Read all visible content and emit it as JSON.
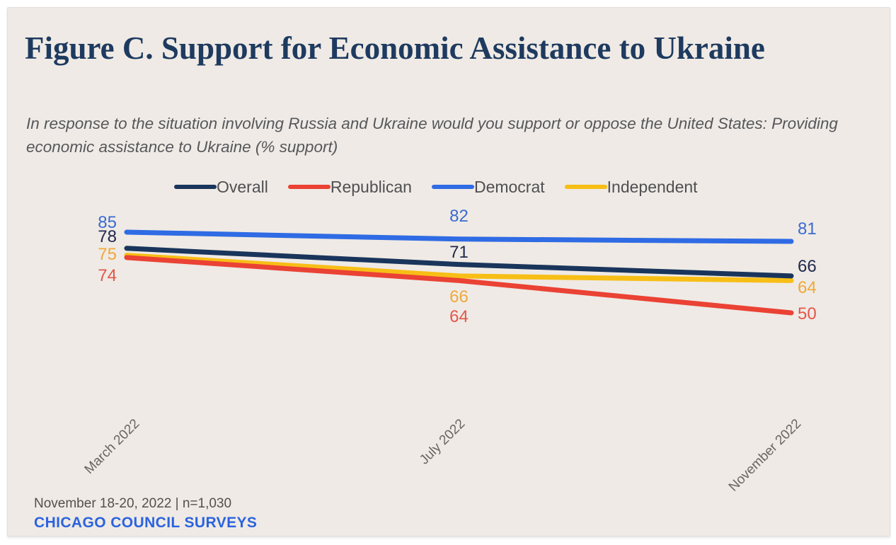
{
  "card": {
    "title": "Figure C. Support for Economic Assistance to Ukraine",
    "subtitle": "In response to the situation involving Russia and Ukraine would you support or oppose the United States: Providing economic assistance to Ukraine (% support)",
    "footer_note": "November 18-20, 2022 | n=1,030",
    "footer_brand": "CHICAGO COUNCIL SURVEYS"
  },
  "colors": {
    "page_background": "#FFFFFF",
    "card_background": "#EFEAE5",
    "title": "#1E3A5F",
    "subtitle": "#56575B",
    "axis_label": "#6A6562",
    "legend_label": "#4F4F52",
    "footer_note": "#53504C",
    "footer_brand": "#2B63DF"
  },
  "chart_data": {
    "type": "line",
    "title": "Figure C. Support for Economic Assistance to Ukraine",
    "subtitle": "In response to the situation involving Russia and Ukraine would you support or oppose the United States: Providing economic assistance to Ukraine (% support)",
    "categories": [
      "March 2022",
      "July 2022",
      "November 2022"
    ],
    "series": [
      {
        "name": "Overall",
        "color": "#1A355B",
        "label_color": "#20294D",
        "values": [
          78,
          71,
          66
        ]
      },
      {
        "name": "Republican",
        "color": "#EA4234",
        "label_color": "#E4564A",
        "values": [
          74,
          64,
          50
        ]
      },
      {
        "name": "Democrat",
        "color": "#2F6BE4",
        "label_color": "#3A6BD0",
        "values": [
          85,
          82,
          81
        ]
      },
      {
        "name": "Independent",
        "color": "#F7BE16",
        "label_color": "#EFA93B",
        "values": [
          75,
          66,
          64
        ]
      }
    ],
    "xlabel": "",
    "ylabel": "% support",
    "ylim": [
      45,
      90
    ],
    "grid": false,
    "axes_drawn": false,
    "legend_position": "top",
    "data_labels": true,
    "source_note": "November 18-20, 2022 | n=1,030",
    "source_org": "CHICAGO COUNCIL SURVEYS"
  }
}
